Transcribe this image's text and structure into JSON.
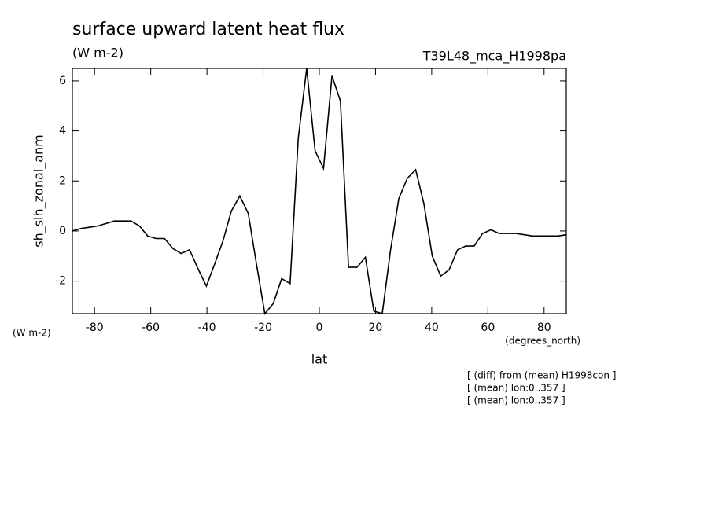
{
  "chart_data": {
    "type": "line",
    "title": "surface upward latent heat flux",
    "subtitle": "(W m-2)",
    "run_label": "T39L48_mca_H1998pa",
    "y_label": "sh_slh_zonal_anm",
    "y_units": "(W m-2)",
    "x_label": "lat",
    "x_units": "(degrees_north)",
    "notes": [
      "[ (diff) from (mean) H1998con ]",
      "[ (mean) lon:0..357 ]",
      "[ (mean) lon:0..357 ]"
    ],
    "x": [
      -87.9,
      -84.9,
      -81.9,
      -78.9,
      -75.9,
      -73.0,
      -70.0,
      -67.0,
      -64.0,
      -61.1,
      -58.1,
      -55.1,
      -52.1,
      -49.2,
      -46.2,
      -43.2,
      -40.2,
      -37.2,
      -34.3,
      -31.3,
      -28.3,
      -25.3,
      -22.4,
      -19.4,
      -16.4,
      -13.4,
      -10.4,
      -7.5,
      -4.5,
      -1.5,
      1.5,
      4.5,
      7.5,
      10.4,
      13.4,
      16.4,
      19.4,
      22.4,
      25.3,
      28.3,
      31.3,
      34.3,
      37.2,
      40.2,
      43.2,
      46.2,
      49.2,
      52.1,
      55.1,
      58.1,
      61.1,
      64.0,
      67.0,
      70.0,
      73.0,
      75.9,
      78.9,
      81.9,
      84.9,
      87.9
    ],
    "series": [
      {
        "color": "#000000",
        "values": [
          0.0,
          0.1,
          0.15,
          0.2,
          0.3,
          0.4,
          0.4,
          0.4,
          0.2,
          -0.2,
          -0.3,
          -0.3,
          -0.7,
          -0.9,
          -0.75,
          -1.5,
          -2.2,
          -1.3,
          -0.4,
          0.8,
          1.4,
          0.7,
          -1.3,
          -3.3,
          -2.9,
          -1.9,
          -2.1,
          3.7,
          6.5,
          3.2,
          2.5,
          6.2,
          5.2,
          -1.45,
          -1.45,
          -1.05,
          -3.2,
          -3.3,
          -0.8,
          1.3,
          2.1,
          2.45,
          1.1,
          -1.0,
          -1.8,
          -1.55,
          -0.75,
          -0.6,
          -0.6,
          -0.1,
          0.05,
          -0.1,
          -0.1,
          -0.1,
          -0.15,
          -0.2,
          -0.2,
          -0.2,
          -0.2,
          -0.15
        ]
      }
    ],
    "xlim": [
      -87.9,
      87.9
    ],
    "ylim": [
      -3.3,
      6.5
    ],
    "xticks": [
      -80,
      -60,
      -40,
      -20,
      0,
      20,
      40,
      60,
      80
    ],
    "yticks": [
      -2,
      0,
      2,
      4,
      6
    ]
  }
}
